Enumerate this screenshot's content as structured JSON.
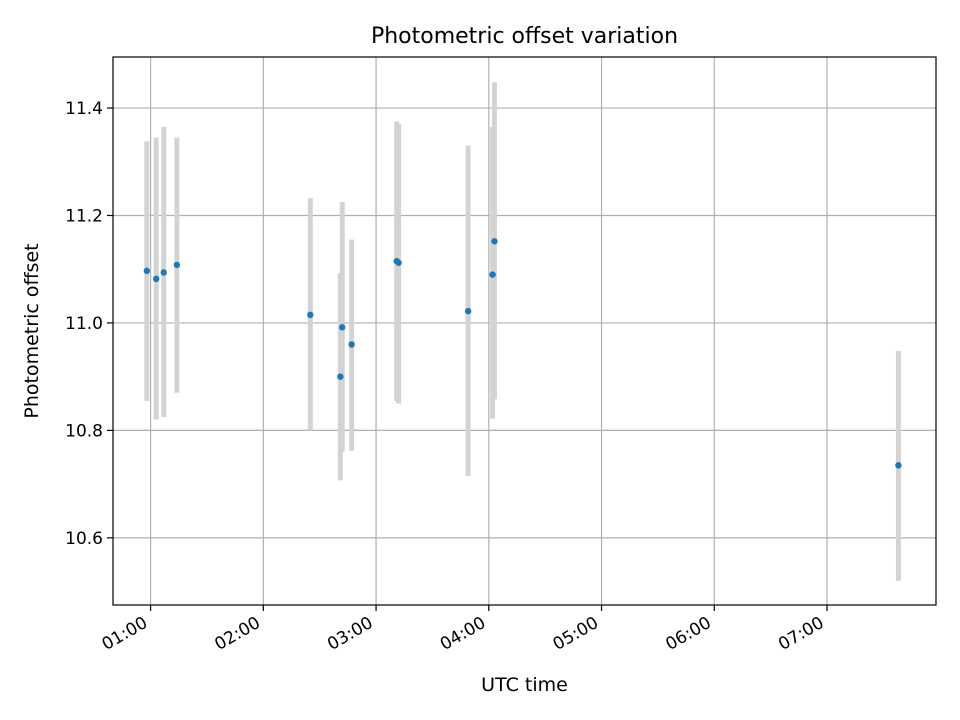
{
  "chart_data": {
    "type": "scatter",
    "title": "Photometric offset variation",
    "xlabel": "UTC time",
    "ylabel": "Photometric offset",
    "x_axis_kind": "time (hours UTC)",
    "xlim": [
      "00:40",
      "07:58"
    ],
    "ylim": [
      10.475,
      11.495
    ],
    "grid": true,
    "x_ticks": [
      "01:00",
      "02:00",
      "03:00",
      "04:00",
      "05:00",
      "06:00",
      "07:00"
    ],
    "y_ticks": [
      "10.6",
      "10.8",
      "11.0",
      "11.2",
      "11.4"
    ],
    "marker_color": "#1f77b4",
    "errorbar_color": "#d3d3d3",
    "points": [
      {
        "x": "00:58",
        "y": 11.097,
        "err_low": 10.855,
        "err_high": 11.338
      },
      {
        "x": "01:03",
        "y": 11.082,
        "err_low": 10.82,
        "err_high": 11.345
      },
      {
        "x": "01:07",
        "y": 11.094,
        "err_low": 10.825,
        "err_high": 11.365
      },
      {
        "x": "01:14",
        "y": 11.108,
        "err_low": 10.87,
        "err_high": 11.345
      },
      {
        "x": "02:25",
        "y": 11.015,
        "err_low": 10.8,
        "err_high": 11.232
      },
      {
        "x": "02:41",
        "y": 10.9,
        "err_low": 10.707,
        "err_high": 11.093
      },
      {
        "x": "02:42",
        "y": 10.992,
        "err_low": 10.76,
        "err_high": 11.225
      },
      {
        "x": "02:47",
        "y": 10.96,
        "err_low": 10.762,
        "err_high": 11.155
      },
      {
        "x": "03:11",
        "y": 11.115,
        "err_low": 10.855,
        "err_high": 11.375
      },
      {
        "x": "03:12",
        "y": 11.112,
        "err_low": 10.85,
        "err_high": 11.37
      },
      {
        "x": "03:49",
        "y": 11.022,
        "err_low": 10.715,
        "err_high": 11.33
      },
      {
        "x": "04:02",
        "y": 11.09,
        "err_low": 10.822,
        "err_high": 11.365
      },
      {
        "x": "04:03",
        "y": 11.152,
        "err_low": 10.858,
        "err_high": 11.448
      },
      {
        "x": "07:38",
        "y": 10.735,
        "err_low": 10.52,
        "err_high": 10.948
      }
    ]
  }
}
